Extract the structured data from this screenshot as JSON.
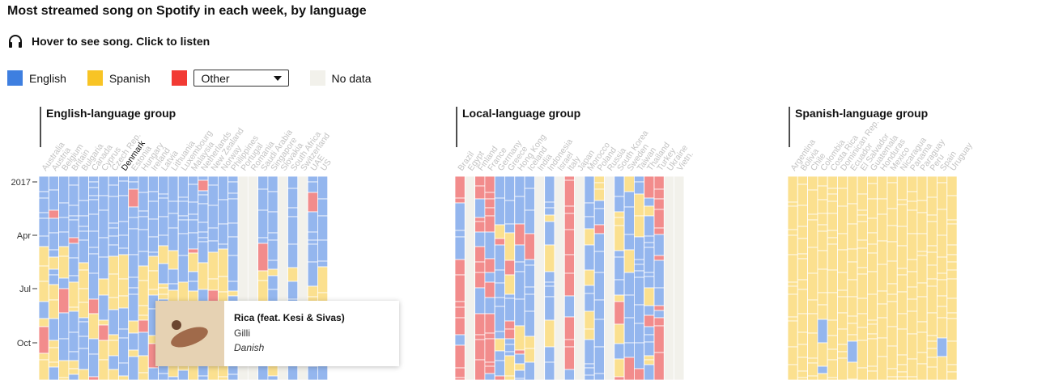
{
  "title": "Most streamed song on Spotify in each week, by language",
  "hint": "Hover to see song. Click to listen",
  "legend": {
    "english": "English",
    "spanish": "Spanish",
    "other_select": "Other",
    "nodata": "No data"
  },
  "colors": {
    "english": "#94b6ee",
    "spanish": "#fbe08f",
    "other": "#f28c8c",
    "nodata": "#f2f1eb",
    "english_legend": "#3e7fe0",
    "spanish_legend": "#f8c425",
    "other_legend": "#f23a34"
  },
  "tooltip": {
    "song": "Rica (feat. Kesi & Sivas)",
    "artist": "Gilli",
    "language": "Danish"
  },
  "chart_data": {
    "type": "heatmap",
    "y_ticks": [
      "2017",
      "Apr",
      "Jul",
      "Oct"
    ],
    "groups": [
      {
        "label": "English-language group",
        "countries": [
          "Australia",
          "Austria",
          "Belgium",
          "Britain",
          "Bulgaria",
          "Canada",
          "Cyprus",
          "Czech Rep.",
          "Denmark",
          "Estonia",
          "Hungary",
          "Ireland",
          "Latvia",
          "Lithuania",
          "Luxembourg",
          "Malaysia",
          "Netherlands",
          "New Zealand",
          "Norway",
          "Philippines",
          "Portugal",
          "Romania",
          "Saudi Arabia",
          "Singapore",
          "Slovakia",
          "South Africa",
          "Switzerland",
          "UAE",
          "US"
        ],
        "dominant": [
          "en",
          "en",
          "en",
          "en",
          "en",
          "en",
          "en",
          "en",
          "en",
          "en",
          "en",
          "en",
          "en",
          "en",
          "en",
          "en",
          "en",
          "en",
          "en",
          "en",
          "none",
          "none",
          "en",
          "en",
          "none",
          "en",
          "none",
          "en",
          "en"
        ],
        "highlight": "Denmark"
      },
      {
        "label": "Local-language group",
        "countries": [
          "Brazil",
          "Egypt",
          "Finland",
          "France",
          "Germany",
          "Greece",
          "Hong Kong",
          "Iceland",
          "India",
          "Indonesia",
          "Israel",
          "Italy",
          "Japan",
          "Morocco",
          "Poland",
          "Russia",
          "South Korea",
          "Sweden",
          "Taiwan",
          "Thailand",
          "Turkey",
          "Ukraine",
          "Vietn."
        ],
        "dominant": [
          "other",
          "none",
          "other",
          "other",
          "en",
          "en",
          "en",
          "en",
          "none",
          "en",
          "none",
          "other",
          "none",
          "en",
          "en",
          "none",
          "en",
          "en",
          "en",
          "en",
          "other",
          "none",
          "none"
        ]
      },
      {
        "label": "Spanish-language group",
        "countries": [
          "Argentina",
          "Bolivia",
          "Chile",
          "Colombia",
          "Costa Rica",
          "Dominican Rep.",
          "Ecuador",
          "El Salvador",
          "Guatemala",
          "Honduras",
          "Mexico",
          "Nicaragua",
          "Panama",
          "Paraguay",
          "Peru",
          "Spain",
          "Uruguay"
        ],
        "dominant": [
          "es",
          "es",
          "es",
          "es",
          "es",
          "es",
          "es",
          "es",
          "es",
          "es",
          "es",
          "es",
          "es",
          "es",
          "es",
          "es",
          "es"
        ]
      }
    ]
  }
}
